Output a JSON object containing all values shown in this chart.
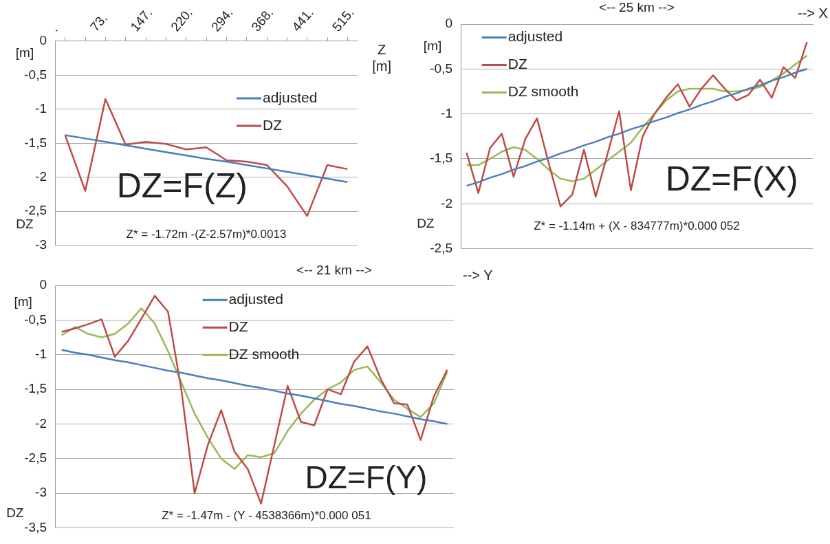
{
  "chart_data": [
    {
      "type": "line",
      "xlabel": "Z [m]",
      "ylabel": "DZ",
      "annotations": [
        "[m]",
        "DZ=F(Z)",
        "Z* = -1.72m -(Z-2.57m)*0.0013"
      ],
      "categories": [
        ".",
        null,
        "73.",
        null,
        "147.",
        null,
        "220.",
        null,
        "294.",
        null,
        "368.",
        null,
        "441.",
        null,
        "515."
      ],
      "series": [
        {
          "name": "adjusted",
          "color": "#4a7ebb",
          "values": [
            -1.38,
            -1.43,
            -1.48,
            -1.53,
            -1.58,
            -1.63,
            -1.68,
            -1.73,
            -1.77,
            -1.82,
            -1.87,
            -1.92,
            -1.97,
            -2.02,
            -2.07
          ]
        },
        {
          "name": "DZ",
          "color": "#be4b48",
          "values": [
            -1.38,
            -2.2,
            -0.85,
            -1.52,
            -1.48,
            -1.51,
            -1.59,
            -1.56,
            -1.75,
            -1.77,
            -1.82,
            -2.13,
            -2.57,
            -1.82,
            -1.88
          ]
        }
      ],
      "ylim": [
        -3,
        0
      ],
      "yticks": [
        0,
        {
          "value": -0.5,
          "label": "-0,5"
        },
        -1,
        {
          "value": -1.5,
          "label": "-1,5"
        },
        -2,
        {
          "value": -2.5,
          "label": "-2,5"
        },
        -3
      ],
      "grid": "y",
      "legend": "right",
      "marker": "none"
    },
    {
      "type": "line",
      "xlabel": "--> X",
      "ylabel": "DZ",
      "annotations": [
        "<-- 25 km -->",
        "[m]",
        "DZ=F(X)",
        "Z* = -1.14m + (X - 834777m)*0.000 052"
      ],
      "categories": [
        null,
        null,
        null,
        null,
        null,
        null,
        null,
        null,
        null,
        null,
        null,
        null,
        null,
        null,
        null,
        null,
        null,
        null,
        null,
        null,
        null,
        null,
        null,
        null,
        null,
        null,
        null,
        null,
        null,
        null
      ],
      "series": [
        {
          "name": "adjusted",
          "color": "#4a7ebb",
          "values": [
            -1.8,
            -1.76,
            -1.71,
            -1.67,
            -1.62,
            -1.58,
            -1.53,
            -1.49,
            -1.44,
            -1.4,
            -1.35,
            -1.31,
            -1.26,
            -1.22,
            -1.17,
            -1.13,
            -1.08,
            -1.04,
            -0.99,
            -0.95,
            -0.9,
            -0.86,
            -0.81,
            -0.77,
            -0.72,
            -0.68,
            -0.63,
            -0.59,
            -0.54,
            -0.5
          ]
        },
        {
          "name": "DZ",
          "color": "#be4b48",
          "values": [
            -1.43,
            -1.88,
            -1.38,
            -1.22,
            -1.7,
            -1.28,
            -1.05,
            -1.55,
            -2.03,
            -1.9,
            -1.4,
            -1.92,
            -1.45,
            -0.97,
            -1.85,
            -1.25,
            -1.0,
            -0.82,
            -0.67,
            -0.92,
            -0.72,
            -0.57,
            -0.72,
            -0.85,
            -0.79,
            -0.62,
            -0.82,
            -0.48,
            -0.6,
            -0.2
          ]
        },
        {
          "name": "DZ smooth",
          "color": "#98b954",
          "values": [
            -1.57,
            -1.57,
            -1.5,
            -1.42,
            -1.37,
            -1.4,
            -1.5,
            -1.62,
            -1.72,
            -1.75,
            -1.72,
            -1.62,
            -1.52,
            -1.42,
            -1.32,
            -1.15,
            -1.0,
            -0.85,
            -0.75,
            -0.72,
            -0.72,
            -0.72,
            -0.75,
            -0.75,
            -0.73,
            -0.7,
            -0.63,
            -0.55,
            -0.45,
            -0.35
          ]
        }
      ],
      "ylim": [
        -2.5,
        0
      ],
      "yticks": [
        0,
        {
          "value": -0.5,
          "label": "-0,5"
        },
        -1,
        {
          "value": -1.5,
          "label": "-1,5"
        },
        -2,
        {
          "value": -2.5,
          "label": "-2,5"
        }
      ],
      "grid": "y",
      "legend": "top left",
      "marker": "none",
      "tick_labels": "y"
    },
    {
      "type": "line",
      "xlabel": "--> Y",
      "ylabel": "DZ",
      "annotations": [
        "<-- 21 km -->",
        "[m]",
        "DZ=F(Y)",
        "Z* = -1.47m - (Y - 4538366m)*0.000 051"
      ],
      "categories": [
        null,
        null,
        null,
        null,
        null,
        null,
        null,
        null,
        null,
        null,
        null,
        null,
        null,
        null,
        null,
        null,
        null,
        null,
        null,
        null,
        null,
        null,
        null,
        null,
        null,
        null,
        null,
        null,
        null,
        null
      ],
      "series": [
        {
          "name": "adjusted",
          "color": "#4a7ebb",
          "values": [
            -0.93,
            -0.97,
            -1.0,
            -1.04,
            -1.08,
            -1.11,
            -1.15,
            -1.19,
            -1.23,
            -1.26,
            -1.3,
            -1.34,
            -1.37,
            -1.41,
            -1.45,
            -1.48,
            -1.52,
            -1.56,
            -1.59,
            -1.63,
            -1.67,
            -1.71,
            -1.74,
            -1.78,
            -1.82,
            -1.85,
            -1.89,
            -1.93,
            -1.96,
            -2.0
          ]
        },
        {
          "name": "DZ",
          "color": "#be4b48",
          "values": [
            -0.67,
            -0.62,
            -0.56,
            -0.49,
            -1.03,
            -0.8,
            -0.48,
            -0.15,
            -0.38,
            -1.5,
            -3.0,
            -2.3,
            -1.8,
            -2.4,
            -2.65,
            -3.15,
            -2.3,
            -1.45,
            -1.97,
            -2.02,
            -1.5,
            -1.57,
            -1.1,
            -0.88,
            -1.35,
            -1.7,
            -1.72,
            -2.23,
            -1.6,
            -1.22
          ]
        },
        {
          "name": "DZ smooth",
          "color": "#98b954",
          "values": [
            -0.72,
            -0.6,
            -0.7,
            -0.75,
            -0.7,
            -0.55,
            -0.33,
            -0.55,
            -0.95,
            -1.4,
            -1.85,
            -2.2,
            -2.5,
            -2.65,
            -2.45,
            -2.48,
            -2.42,
            -2.1,
            -1.85,
            -1.65,
            -1.5,
            -1.4,
            -1.22,
            -1.17,
            -1.4,
            -1.65,
            -1.78,
            -1.9,
            -1.7,
            -1.25
          ]
        }
      ],
      "ylim": [
        -3.5,
        0
      ],
      "yticks": [
        0,
        {
          "value": -0.5,
          "label": "-0,5"
        },
        -1,
        {
          "value": -1.5,
          "label": "-1,5"
        },
        -2,
        {
          "value": -2.5,
          "label": "-2,5"
        },
        -3,
        {
          "value": -3.5,
          "label": "-3,5"
        }
      ],
      "grid": "y",
      "legend": "top",
      "marker": "none",
      "tick_labels": "y"
    }
  ]
}
